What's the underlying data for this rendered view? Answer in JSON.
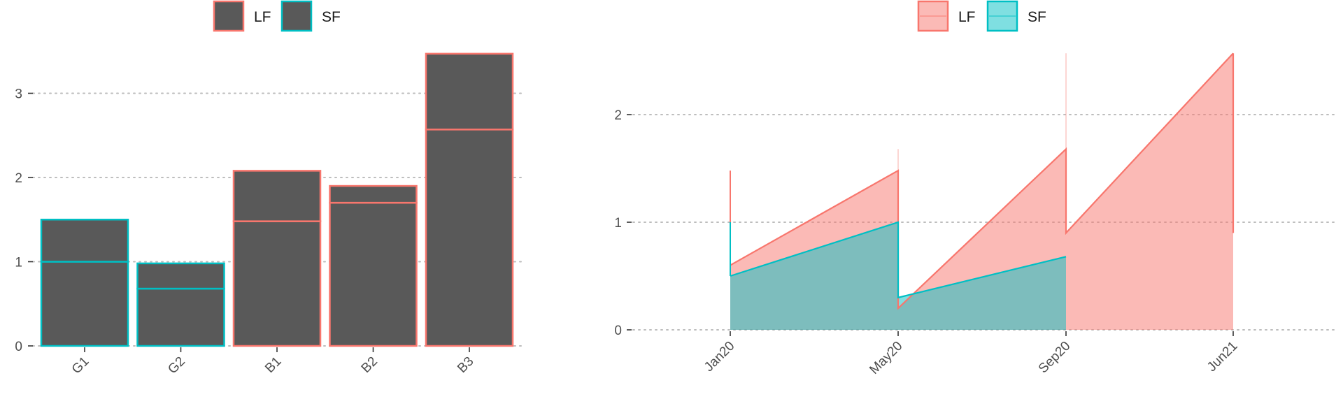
{
  "colors": {
    "lf": "#F8766D",
    "sf": "#00BFC4",
    "bar_fill": "#595959",
    "lf_area": "#F8766D",
    "sf_area": "#00BFC4"
  },
  "chart_data": [
    {
      "type": "bar",
      "title": "",
      "xlabel": "",
      "ylabel": "",
      "ylim": [
        0,
        3.55
      ],
      "y_ticks": [
        0,
        1,
        2,
        3
      ],
      "grid": "horizontal-dotted",
      "legend": {
        "position": "top",
        "entries": [
          "LF",
          "SF"
        ]
      },
      "categories": [
        "G1",
        "G2",
        "B1",
        "B2",
        "B3"
      ],
      "bar_outline_series": [
        "SF",
        "SF",
        "LF",
        "LF",
        "LF"
      ],
      "series": [
        {
          "name": "LF",
          "values": [
            0.5,
            0.3,
            0.6,
            0.2,
            0.9
          ]
        },
        {
          "name": "SF",
          "values": [
            1.0,
            0.68,
            1.48,
            1.7,
            2.57
          ]
        }
      ],
      "stack_order": [
        "SF",
        "LF"
      ],
      "totals": [
        1.5,
        0.98,
        2.08,
        1.9,
        3.47
      ]
    },
    {
      "type": "area",
      "title": "",
      "xlabel": "",
      "ylabel": "",
      "ylim": [
        -0.1,
        2.55
      ],
      "y_ticks": [
        0,
        1,
        2
      ],
      "x_ticks": [
        "Jan20",
        "May20",
        "Sep20",
        "Jun21"
      ],
      "grid": "horizontal-dotted",
      "legend": {
        "position": "top",
        "entries": [
          "LF",
          "SF"
        ]
      },
      "x": [
        "Jan20",
        "May20",
        "Sep20",
        "Jun21"
      ],
      "series": [
        {
          "name": "LF",
          "segments": [
            {
              "from": "Jan20",
              "to": "May20",
              "start": 0.6,
              "end": 1.48
            },
            {
              "from": "May20",
              "to": "Sep20",
              "start": 0.2,
              "end": 1.68
            },
            {
              "from": "Sep20",
              "to": "Jun21",
              "start": 0.9,
              "end": 2.57
            }
          ]
        },
        {
          "name": "SF",
          "segments": [
            {
              "from": "Jan20",
              "to": "May20",
              "start": 0.5,
              "end": 1.0
            },
            {
              "from": "May20",
              "to": "Sep20",
              "start": 0.3,
              "end": 0.68
            }
          ]
        }
      ]
    }
  ]
}
